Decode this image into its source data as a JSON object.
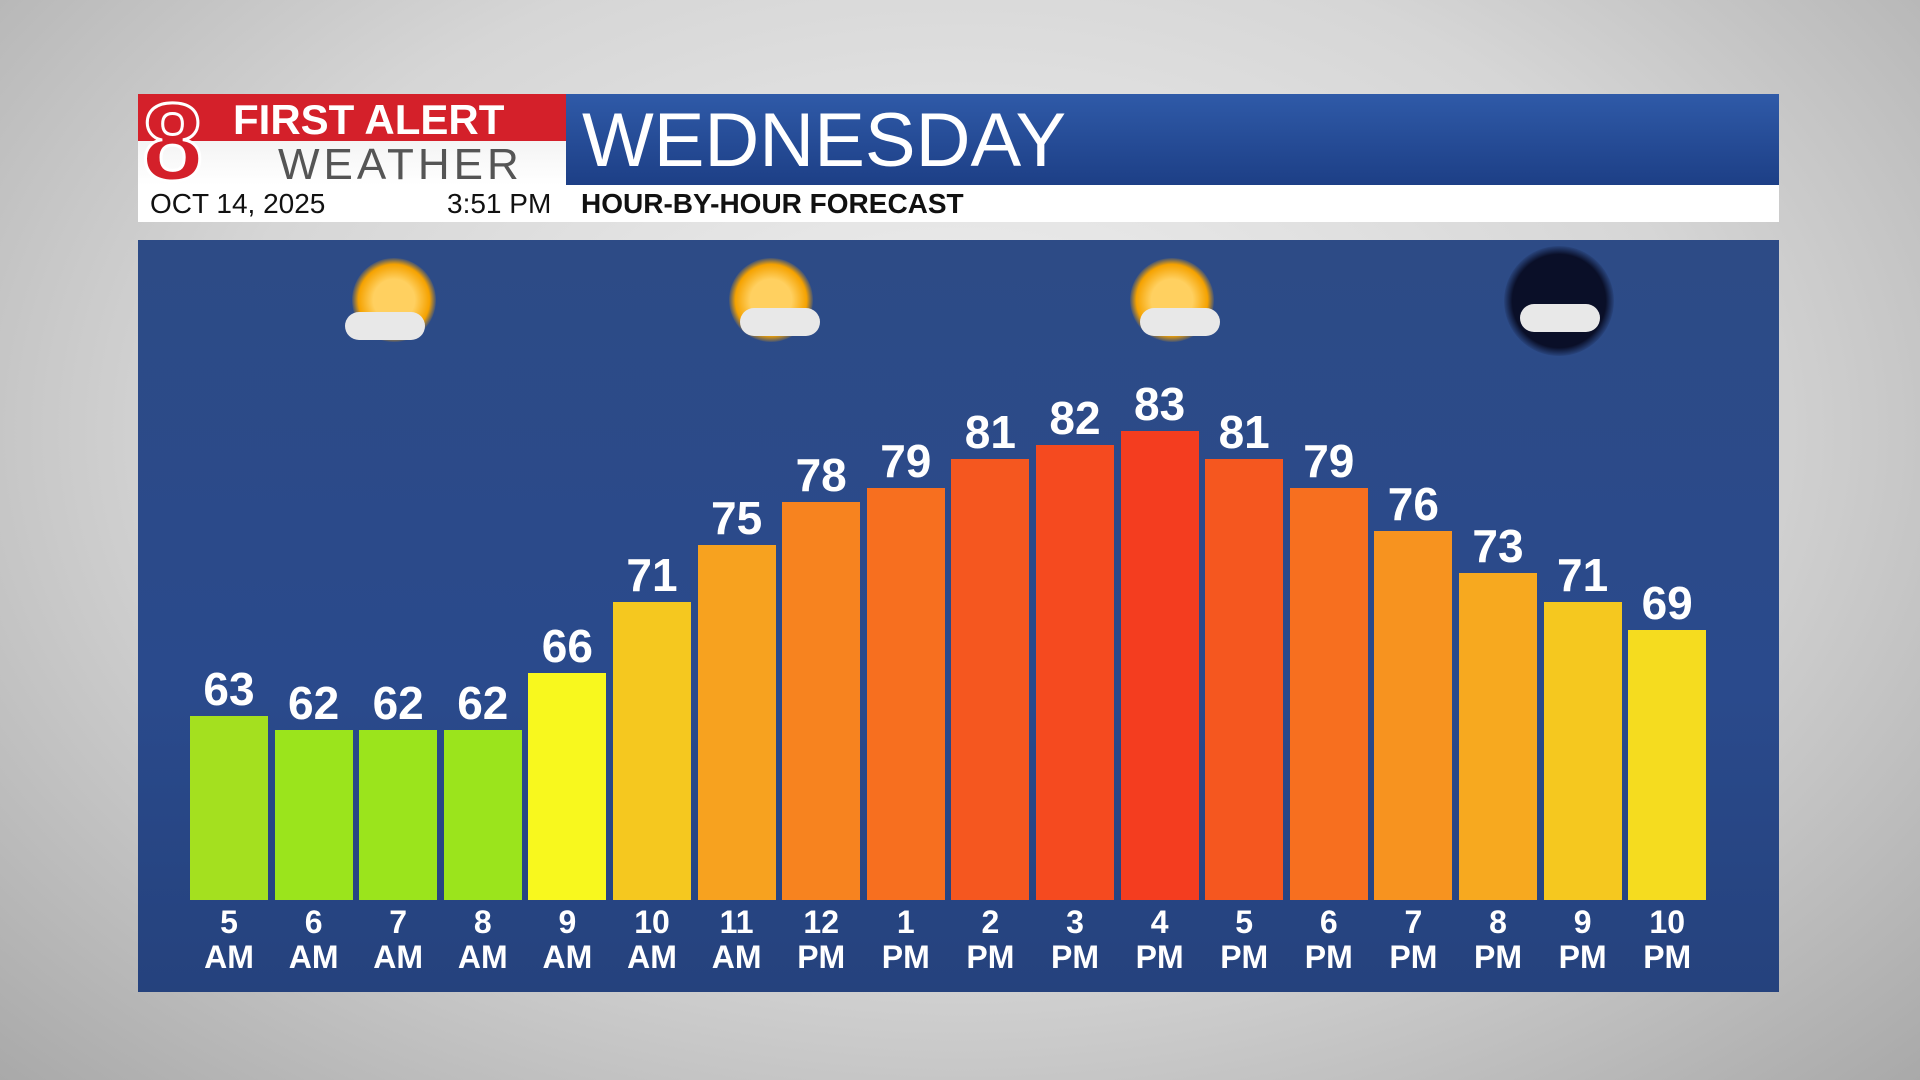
{
  "branding": {
    "line1": "FIRST ALERT",
    "line2": "WEATHER",
    "date": "OCT 14, 2025",
    "time": "3:51 PM"
  },
  "chart_data": {
    "type": "bar",
    "title": "WEDNESDAY",
    "subtitle": "HOUR-BY-HOUR FORECAST",
    "categories": [
      "5 AM",
      "6 AM",
      "7 AM",
      "8 AM",
      "9 AM",
      "10 AM",
      "11 AM",
      "12 PM",
      "1 PM",
      "2 PM",
      "3 PM",
      "4 PM",
      "5 PM",
      "6 PM",
      "7 PM",
      "8 PM",
      "9 PM",
      "10 PM"
    ],
    "values": [
      63,
      62,
      62,
      62,
      66,
      71,
      75,
      78,
      79,
      81,
      82,
      83,
      81,
      79,
      76,
      73,
      71,
      69
    ],
    "colors": [
      "#a4e01f",
      "#9be41c",
      "#9be41c",
      "#9be41c",
      "#f8f81e",
      "#f5c81f",
      "#f7a21f",
      "#f7831f",
      "#f76f1f",
      "#f5571f",
      "#f54a1f",
      "#f43d1f",
      "#f5571f",
      "#f76f1f",
      "#f7931f",
      "#f7a91f",
      "#f5c81f",
      "#f5dc1f"
    ]
  }
}
